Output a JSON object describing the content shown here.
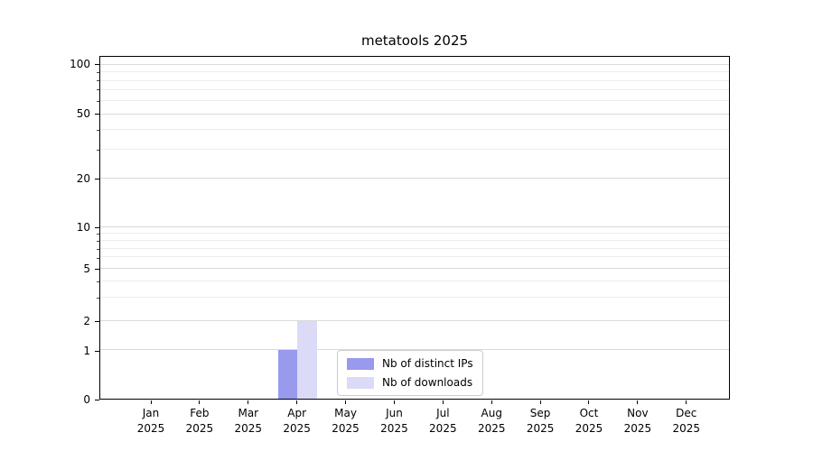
{
  "title": "metatools 2025",
  "chart_data": {
    "type": "bar",
    "title": "metatools 2025",
    "scale": "symlog",
    "grid": true,
    "categories": [
      "Jan 2025",
      "Feb 2025",
      "Mar 2025",
      "Apr 2025",
      "May 2025",
      "Jun 2025",
      "Jul 2025",
      "Aug 2025",
      "Sep 2025",
      "Oct 2025",
      "Nov 2025",
      "Dec 2025"
    ],
    "x_tick_months": [
      "Jan",
      "Feb",
      "Mar",
      "Apr",
      "May",
      "Jun",
      "Jul",
      "Aug",
      "Sep",
      "Oct",
      "Nov",
      "Dec"
    ],
    "x_tick_year": "2025",
    "y_ticks": [
      0,
      1,
      2,
      5,
      10,
      20,
      50,
      100
    ],
    "y_minor_ticks": [
      3,
      4,
      6,
      7,
      8,
      9,
      30,
      40,
      60,
      70,
      80,
      90
    ],
    "ylim": [
      0,
      110
    ],
    "series": [
      {
        "name": "Nb of distinct IPs",
        "color": "#9999ee",
        "values": [
          0,
          0,
          0,
          1,
          0,
          0,
          0,
          0,
          0,
          0,
          0,
          0
        ]
      },
      {
        "name": "Nb of downloads",
        "color": "#dbdbf8",
        "values": [
          0,
          0,
          0,
          2,
          0,
          0,
          0,
          0,
          0,
          0,
          0,
          0
        ]
      }
    ],
    "legend": {
      "position": "inside-bottom-center",
      "entries": [
        "Nb of distinct IPs",
        "Nb of downloads"
      ]
    }
  }
}
